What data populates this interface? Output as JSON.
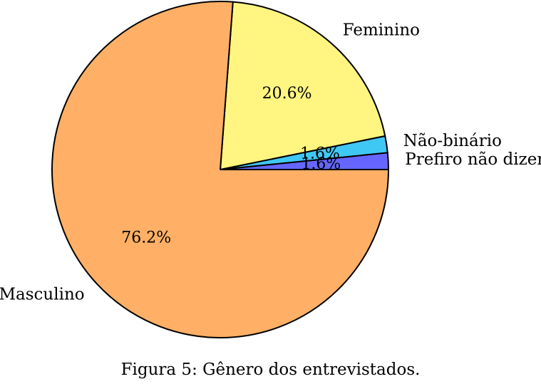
{
  "chart_data": {
    "type": "pie",
    "slices": [
      {
        "label": "Prefiro não dizer",
        "value": 1.6,
        "value_label": "1.6%",
        "color": "#6666ff"
      },
      {
        "label": "Não-binário",
        "value": 1.6,
        "value_label": "1.6%",
        "color": "#40c8f4"
      },
      {
        "label": "Feminino",
        "value": 20.6,
        "value_label": "20.6%",
        "color": "#fff580"
      },
      {
        "label": "Masculino",
        "value": 76.2,
        "value_label": "76.2%",
        "color": "#ffb066"
      }
    ],
    "start_angle": "0 deg (3 o'clock), counter-clockwise",
    "edge_color": "#000000"
  },
  "caption": "Figura 5: Gênero dos entrevistados."
}
